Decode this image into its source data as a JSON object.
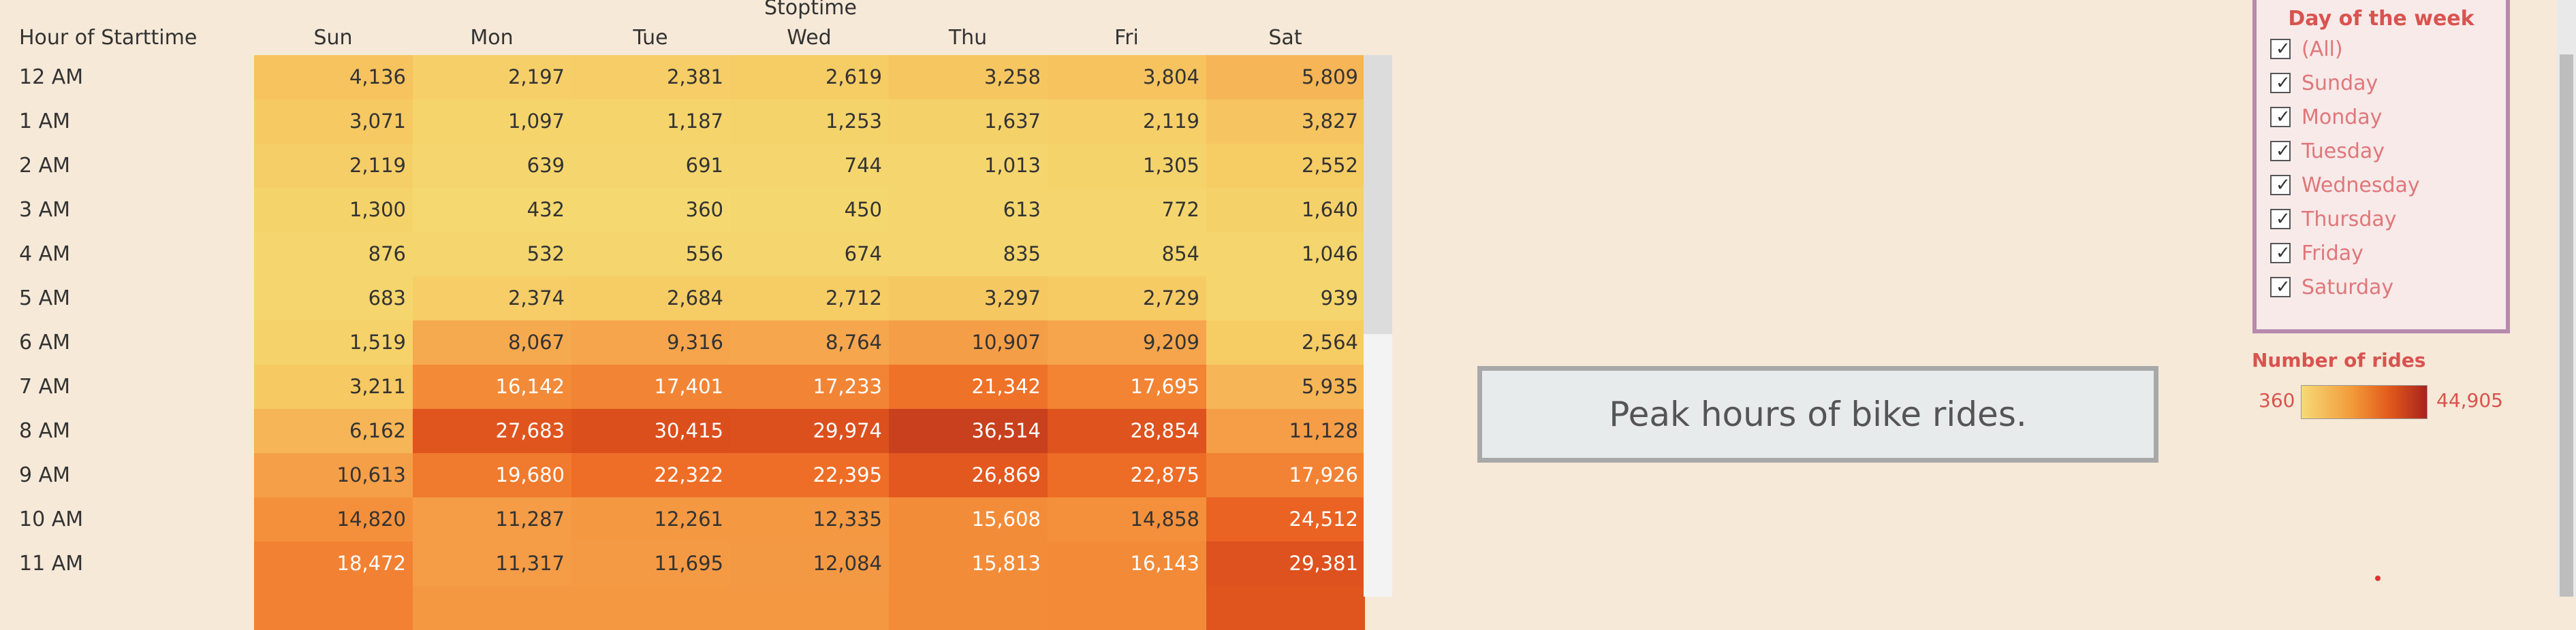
{
  "header": {
    "column_group_title": "Stoptime",
    "row_header_label": "Hour of Starttime"
  },
  "columns": [
    "Sun",
    "Mon",
    "Tue",
    "Wed",
    "Thu",
    "Fri",
    "Sat"
  ],
  "rows": [
    {
      "hour": "12 AM",
      "values": [
        "4,136",
        "2,197",
        "2,381",
        "2,619",
        "3,258",
        "3,804",
        "5,809"
      ],
      "colors": [
        "#f6c35f",
        "#f6cf68",
        "#f6cd66",
        "#f6cc65",
        "#f6c660",
        "#f6c35f",
        "#f6b556"
      ]
    },
    {
      "hour": "1 AM",
      "values": [
        "3,071",
        "1,097",
        "1,187",
        "1,253",
        "1,637",
        "2,119",
        "3,827"
      ],
      "colors": [
        "#f6c962",
        "#f5d46c",
        "#f5d46c",
        "#f5d36b",
        "#f5d16a",
        "#f6cf68",
        "#f6c460"
      ]
    },
    {
      "hour": "2 AM",
      "values": [
        "2,119",
        "639",
        "691",
        "744",
        "1,013",
        "1,305",
        "2,552"
      ],
      "colors": [
        "#f6ce67",
        "#f5d66e",
        "#f5d66e",
        "#f5d66e",
        "#f5d56d",
        "#f5d36b",
        "#f6cc65"
      ]
    },
    {
      "hour": "3 AM",
      "values": [
        "1,300",
        "432",
        "360",
        "450",
        "613",
        "772",
        "1,640"
      ],
      "colors": [
        "#f5d36b",
        "#f5d86f",
        "#f5d870",
        "#f5d76f",
        "#f5d66e",
        "#f5d66e",
        "#f5d16a"
      ]
    },
    {
      "hour": "4 AM",
      "values": [
        "876",
        "532",
        "556",
        "674",
        "835",
        "854",
        "1,046"
      ],
      "colors": [
        "#f5d56d",
        "#f5d66e",
        "#f5d66e",
        "#f5d66e",
        "#f5d56d",
        "#f5d56d",
        "#f5d56d"
      ]
    },
    {
      "hour": "5 AM",
      "values": [
        "683",
        "2,374",
        "2,684",
        "2,712",
        "3,297",
        "2,729",
        "939"
      ],
      "colors": [
        "#f5d66e",
        "#f6cd66",
        "#f6cc65",
        "#f6cc65",
        "#f6c861",
        "#f6cb64",
        "#f5d56d"
      ]
    },
    {
      "hour": "6 AM",
      "values": [
        "1,519",
        "8,067",
        "9,316",
        "8,764",
        "10,907",
        "9,209",
        "2,564"
      ],
      "colors": [
        "#f5d26a",
        "#f6aa4f",
        "#f6a54c",
        "#f6a74d",
        "#f59e48",
        "#f6a54c",
        "#f6cc65"
      ]
    },
    {
      "hour": "7 AM",
      "values": [
        "3,211",
        "16,142",
        "17,401",
        "17,233",
        "21,342",
        "17,695",
        "5,935"
      ],
      "colors": [
        "#f6c962",
        "#f38a37",
        "#f28535",
        "#f28535",
        "#ef7229",
        "#f28434",
        "#f6b657"
      ]
    },
    {
      "hour": "8 AM",
      "values": [
        "6,162",
        "27,683",
        "30,415",
        "29,974",
        "36,514",
        "28,854",
        "11,128"
      ],
      "colors": [
        "#f6b556",
        "#e0551e",
        "#db4f1d",
        "#dc501d",
        "#c8401d",
        "#de531e",
        "#f59d47"
      ]
    },
    {
      "hour": "9 AM",
      "values": [
        "10,613",
        "19,680",
        "22,322",
        "22,395",
        "26,869",
        "22,875",
        "17,926"
      ],
      "colors": [
        "#f59f48",
        "#f07a2d",
        "#ee6e27",
        "#ee6e27",
        "#e3581f",
        "#ed6c26",
        "#f28334"
      ]
    },
    {
      "hour": "10 AM",
      "values": [
        "14,820",
        "11,287",
        "12,261",
        "12,335",
        "15,608",
        "14,858",
        "24,512"
      ],
      "colors": [
        "#f4903b",
        "#f59c46",
        "#f49942",
        "#f49942",
        "#f38c39",
        "#f4903b",
        "#ea6323"
      ]
    },
    {
      "hour": "11 AM",
      "values": [
        "18,472",
        "11,317",
        "11,695",
        "12,084",
        "15,813",
        "16,143",
        "29,381"
      ],
      "colors": [
        "#f28133",
        "#f59c46",
        "#f59a44",
        "#f49943",
        "#f38c39",
        "#f38a37",
        "#dd521e"
      ]
    },
    {
      "hour": "",
      "values": [
        "",
        "",
        "",
        "",
        "",
        "",
        ""
      ],
      "colors": [
        "#f28133",
        "#f49841",
        "#f49841",
        "#f49841",
        "#f38c39",
        "#f38a37",
        "#e0551e"
      ]
    }
  ],
  "title_box": {
    "text": "Peak hours of bike rides."
  },
  "filter": {
    "title": "Day of the week",
    "items": [
      "(All)",
      "Sunday",
      "Monday",
      "Tuesday",
      "Wednesday",
      "Thursday",
      "Friday",
      "Saturday"
    ]
  },
  "legend": {
    "title": "Number of rides",
    "min": "360",
    "max": "44,905"
  },
  "colors": {
    "accent_red": "#d9534f",
    "background": "#f6e9d8",
    "filter_border": "#b78aae"
  },
  "icons": {
    "checkbox": "checkbox-checked-icon"
  }
}
